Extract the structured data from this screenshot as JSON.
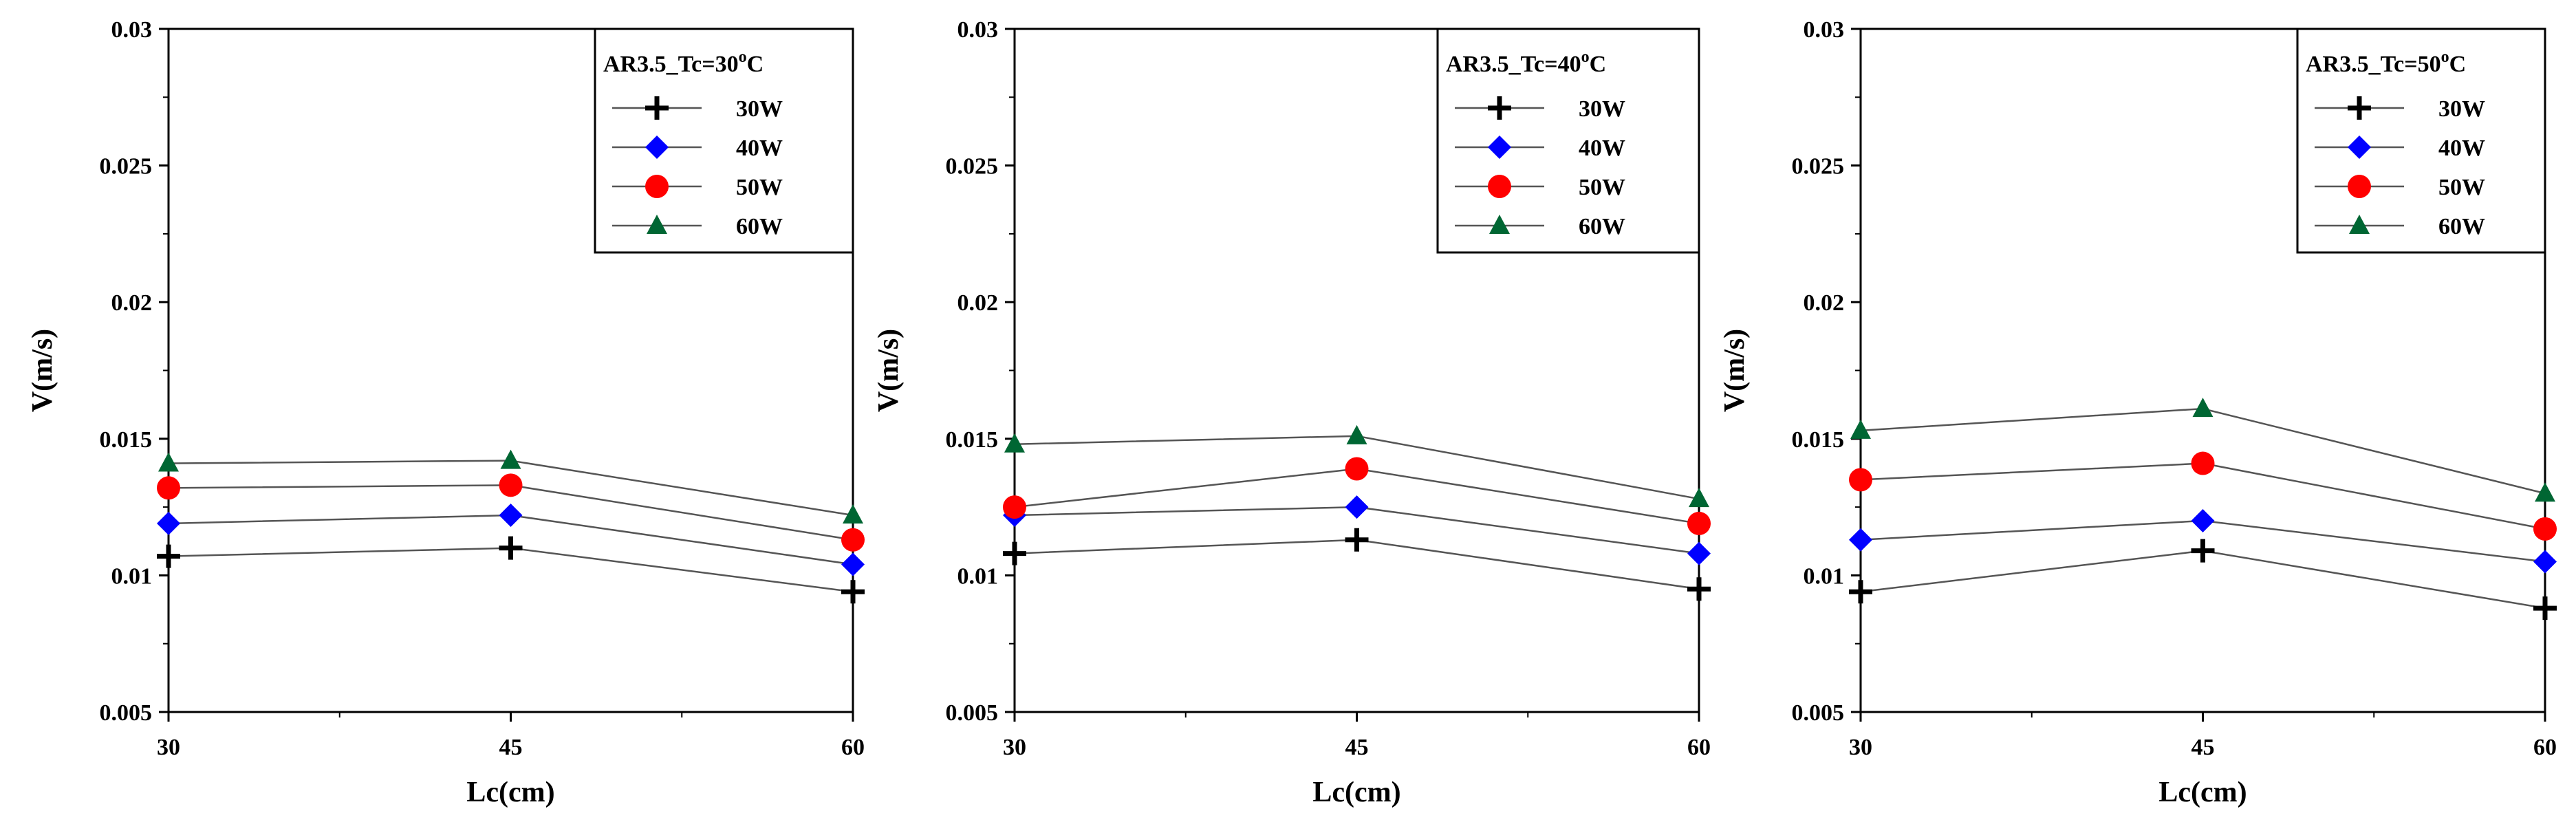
{
  "figure": {
    "background": "#ffffff"
  },
  "style": {
    "line_color": "#555555",
    "markers": {
      "30W": {
        "shape": "plus",
        "color": "#000000"
      },
      "40W": {
        "shape": "diamond",
        "color": "#0000ff"
      },
      "50W": {
        "shape": "circle",
        "color": "#ff0000"
      },
      "60W": {
        "shape": "triangle",
        "color": "#006633"
      }
    }
  },
  "chart_data": [
    {
      "type": "line",
      "legend_title": {
        "main": "AR3.5_Tc=30",
        "sup": "o",
        "unit": "C"
      },
      "xlabel": "Lc(cm)",
      "ylabel": "V(m/s)",
      "x": [
        30,
        45,
        60
      ],
      "x_ticks": [
        "30",
        "45",
        "60"
      ],
      "xlim": [
        30,
        60
      ],
      "ylim": [
        0.005,
        0.03
      ],
      "y_ticks": [
        "0.005",
        "0.01",
        "0.015",
        "0.02",
        "0.025",
        "0.03"
      ],
      "legend_position": "top-right",
      "series": [
        {
          "name": "30W",
          "values": [
            0.0107,
            0.011,
            0.0094
          ]
        },
        {
          "name": "40W",
          "values": [
            0.0119,
            0.0122,
            0.0104
          ]
        },
        {
          "name": "50W",
          "values": [
            0.0132,
            0.0133,
            0.0113
          ]
        },
        {
          "name": "60W",
          "values": [
            0.0141,
            0.0142,
            0.0122
          ]
        }
      ]
    },
    {
      "type": "line",
      "legend_title": {
        "main": "AR3.5_Tc=40",
        "sup": "o",
        "unit": "C"
      },
      "xlabel": "Lc(cm)",
      "ylabel": "V(m/s)",
      "x": [
        30,
        45,
        60
      ],
      "x_ticks": [
        "30",
        "45",
        "60"
      ],
      "xlim": [
        30,
        60
      ],
      "ylim": [
        0.005,
        0.03
      ],
      "y_ticks": [
        "0.005",
        "0.01",
        "0.015",
        "0.02",
        "0.025",
        "0.03"
      ],
      "legend_position": "top-right",
      "series": [
        {
          "name": "30W",
          "values": [
            0.0108,
            0.0113,
            0.0095
          ]
        },
        {
          "name": "40W",
          "values": [
            0.0122,
            0.0125,
            0.0108
          ]
        },
        {
          "name": "50W",
          "values": [
            0.0125,
            0.0139,
            0.0119
          ]
        },
        {
          "name": "60W",
          "values": [
            0.0148,
            0.0151,
            0.0128
          ]
        }
      ]
    },
    {
      "type": "line",
      "legend_title": {
        "main": "AR3.5_Tc=50",
        "sup": "o",
        "unit": "C"
      },
      "xlabel": "Lc(cm)",
      "ylabel": "V(m/s)",
      "x": [
        30,
        45,
        60
      ],
      "x_ticks": [
        "30",
        "45",
        "60"
      ],
      "xlim": [
        30,
        60
      ],
      "ylim": [
        0.005,
        0.03
      ],
      "y_ticks": [
        "0.005",
        "0.01",
        "0.015",
        "0.02",
        "0.025",
        "0.03"
      ],
      "legend_position": "top-right",
      "series": [
        {
          "name": "30W",
          "values": [
            0.0094,
            0.0109,
            0.0088
          ]
        },
        {
          "name": "40W",
          "values": [
            0.0113,
            0.012,
            0.0105
          ]
        },
        {
          "name": "50W",
          "values": [
            0.0135,
            0.0141,
            0.0117
          ]
        },
        {
          "name": "60W",
          "values": [
            0.0153,
            0.0161,
            0.013
          ]
        }
      ]
    }
  ]
}
